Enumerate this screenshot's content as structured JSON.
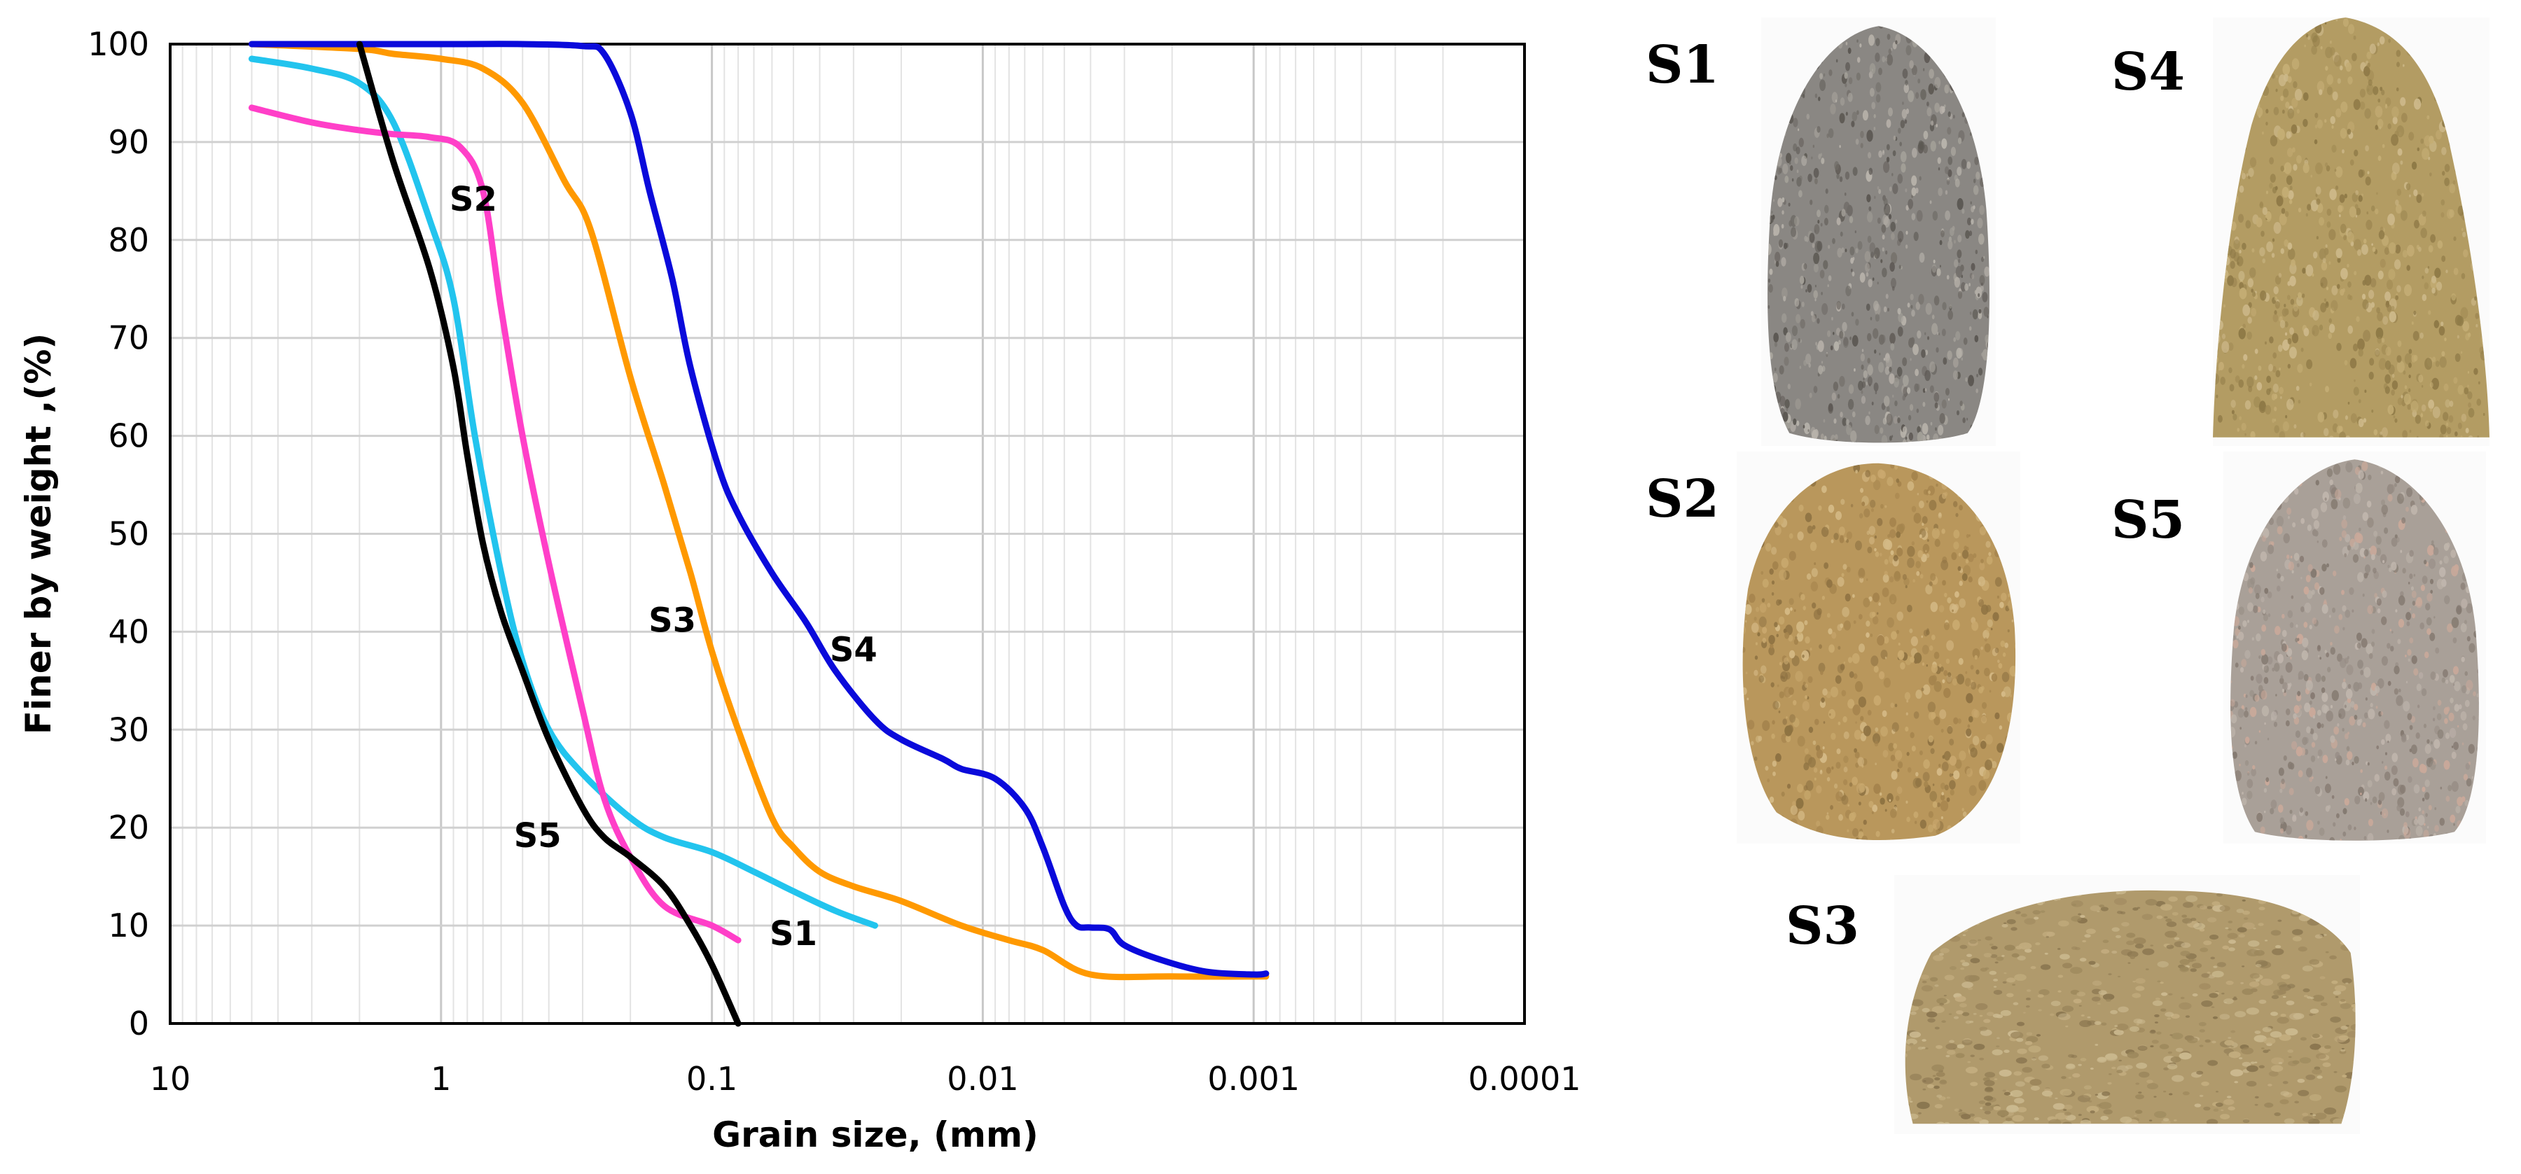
{
  "chart_data": {
    "type": "line",
    "xlabel": "Grain size, (mm)",
    "ylabel": "Finer by weight ,(%)",
    "x_scale": "log",
    "x_reversed": true,
    "xlim": [
      10,
      0.0001
    ],
    "ylim": [
      0,
      100
    ],
    "x_ticks": [
      "10",
      "1",
      "0.1",
      "0.01",
      "0.001",
      "0.0001"
    ],
    "y_ticks": [
      "0",
      "10",
      "20",
      "30",
      "40",
      "50",
      "60",
      "70",
      "80",
      "90",
      "100"
    ],
    "grid": true,
    "series": [
      {
        "name": "S1",
        "color": "#22c4ee",
        "label": {
          "x": 0.05,
          "y": 8
        },
        "points": [
          [
            5,
            98.5
          ],
          [
            3,
            97.5
          ],
          [
            2,
            96
          ],
          [
            1.5,
            92
          ],
          [
            1.1,
            82
          ],
          [
            0.9,
            74
          ],
          [
            0.75,
            60
          ],
          [
            0.6,
            46
          ],
          [
            0.5,
            37
          ],
          [
            0.4,
            30
          ],
          [
            0.3,
            25.5
          ],
          [
            0.2,
            21
          ],
          [
            0.15,
            19
          ],
          [
            0.1,
            17.5
          ],
          [
            0.07,
            15.5
          ],
          [
            0.05,
            13.5
          ],
          [
            0.035,
            11.5
          ],
          [
            0.025,
            10
          ]
        ]
      },
      {
        "name": "S2",
        "color": "#ff3fc8",
        "label": {
          "x": 0.76,
          "y": 83
        },
        "points": [
          [
            5,
            93.5
          ],
          [
            3,
            92
          ],
          [
            2,
            91.2
          ],
          [
            1.5,
            90.8
          ],
          [
            1.1,
            90.5
          ],
          [
            0.85,
            89.5
          ],
          [
            0.7,
            85
          ],
          [
            0.6,
            73
          ],
          [
            0.5,
            60
          ],
          [
            0.4,
            47
          ],
          [
            0.3,
            32
          ],
          [
            0.25,
            23
          ],
          [
            0.2,
            17
          ],
          [
            0.15,
            12
          ],
          [
            0.1,
            10
          ],
          [
            0.08,
            8.5
          ]
        ]
      },
      {
        "name": "S3",
        "color": "#ff9900",
        "label": {
          "x": 0.14,
          "y": 40
        },
        "points": [
          [
            5,
            100
          ],
          [
            2,
            99.5
          ],
          [
            1.5,
            99
          ],
          [
            1,
            98.5
          ],
          [
            0.7,
            97.5
          ],
          [
            0.5,
            94
          ],
          [
            0.35,
            86
          ],
          [
            0.28,
            81
          ],
          [
            0.2,
            66
          ],
          [
            0.15,
            55
          ],
          [
            0.12,
            46
          ],
          [
            0.1,
            38
          ],
          [
            0.08,
            30
          ],
          [
            0.06,
            21
          ],
          [
            0.05,
            18
          ],
          [
            0.04,
            15.5
          ],
          [
            0.03,
            14
          ],
          [
            0.02,
            12.5
          ],
          [
            0.012,
            10
          ],
          [
            0.008,
            8.5
          ],
          [
            0.006,
            7.5
          ],
          [
            0.004,
            5
          ],
          [
            0.002,
            4.8
          ],
          [
            0.0009,
            4.8
          ]
        ]
      },
      {
        "name": "S4",
        "color": "#0a0adb",
        "label": {
          "x": 0.03,
          "y": 37
        },
        "points": [
          [
            5,
            100
          ],
          [
            1,
            100
          ],
          [
            0.5,
            100
          ],
          [
            0.3,
            99.8
          ],
          [
            0.25,
            99
          ],
          [
            0.2,
            93
          ],
          [
            0.17,
            85
          ],
          [
            0.14,
            76
          ],
          [
            0.12,
            67
          ],
          [
            0.095,
            57
          ],
          [
            0.08,
            52
          ],
          [
            0.06,
            46
          ],
          [
            0.045,
            41
          ],
          [
            0.035,
            36
          ],
          [
            0.025,
            31
          ],
          [
            0.02,
            29
          ],
          [
            0.014,
            27
          ],
          [
            0.012,
            26
          ],
          [
            0.009,
            25
          ],
          [
            0.007,
            22
          ],
          [
            0.006,
            18
          ],
          [
            0.005,
            12
          ],
          [
            0.0045,
            10
          ],
          [
            0.004,
            9.8
          ],
          [
            0.0034,
            9.6
          ],
          [
            0.003,
            8
          ],
          [
            0.0022,
            6.5
          ],
          [
            0.0015,
            5.3
          ],
          [
            0.001,
            5
          ],
          [
            0.0009,
            5.1
          ]
        ]
      },
      {
        "name": "S5",
        "color": "#000000",
        "label": {
          "x": 0.44,
          "y": 18
        },
        "points": [
          [
            2,
            100
          ],
          [
            1.5,
            88
          ],
          [
            1.1,
            77
          ],
          [
            0.9,
            67
          ],
          [
            0.8,
            58
          ],
          [
            0.7,
            49
          ],
          [
            0.6,
            42
          ],
          [
            0.5,
            36
          ],
          [
            0.4,
            29
          ],
          [
            0.3,
            22
          ],
          [
            0.25,
            19
          ],
          [
            0.2,
            17
          ],
          [
            0.15,
            14
          ],
          [
            0.12,
            10
          ],
          [
            0.1,
            6
          ],
          [
            0.08,
            0
          ]
        ]
      }
    ]
  },
  "samples": [
    {
      "label": "S1",
      "palette": [
        "#8a8783",
        "#6f6b66",
        "#a39f98",
        "#5c5853",
        "#b7b2aa"
      ]
    },
    {
      "label": "S4",
      "palette": [
        "#b39c63",
        "#a08a54",
        "#c4ad74",
        "#8f7a47",
        "#cdb98a"
      ]
    },
    {
      "label": "S2",
      "palette": [
        "#b9975c",
        "#a5844d",
        "#c9a96e",
        "#8e7242",
        "#d4b985"
      ]
    },
    {
      "label": "S5",
      "palette": [
        "#a9a098",
        "#968c84",
        "#bfb5ac",
        "#857a71",
        "#c9a99a"
      ]
    },
    {
      "label": "S3",
      "palette": [
        "#b09a6c",
        "#9c875c",
        "#c2ac7e",
        "#8a7650",
        "#cbb98f"
      ]
    }
  ]
}
